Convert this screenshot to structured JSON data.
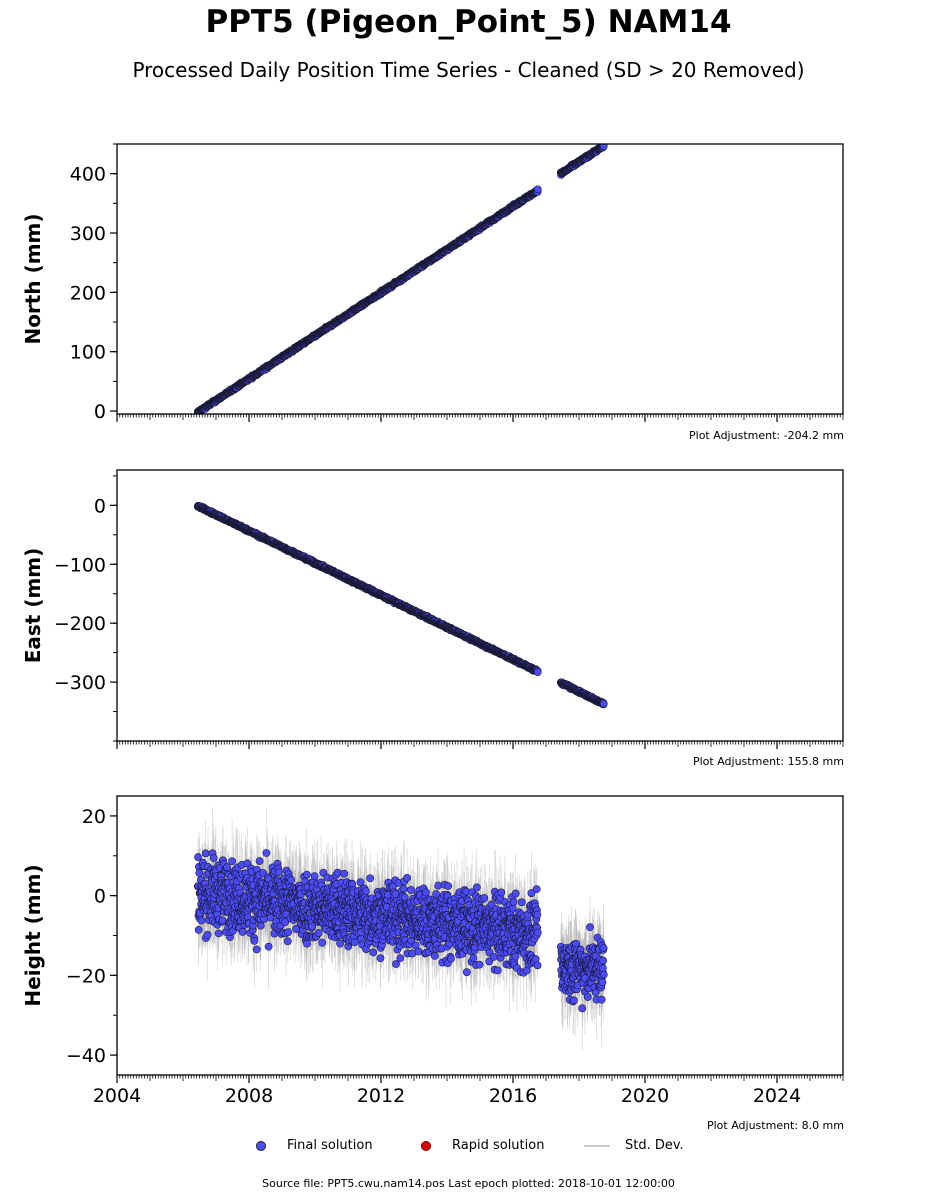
{
  "title": "PPT5 (Pigeon_Point_5) NAM14",
  "subtitle": "Processed Daily Position Time Series - Cleaned (SD > 20 Removed)",
  "footer": "Source file: PPT5.cwu.nam14.pos  Last epoch plotted: 2018-10-01 12:00:00",
  "legend": {
    "final": "Final solution",
    "rapid": "Rapid solution",
    "std": "Std. Dev.",
    "final_color": "#4b4bff",
    "rapid_color": "#e00000",
    "std_color": "#c8c8c8"
  },
  "chart_data": [
    {
      "type": "scatter",
      "ylabel": "North (mm)",
      "adjustment": "Plot Adjustment: -204.2 mm",
      "xlim": [
        2004,
        2026
      ],
      "ylim": [
        -5,
        450
      ],
      "yticks": [
        0,
        100,
        200,
        300,
        400
      ],
      "ytick_labels": [
        "0",
        "100",
        "200",
        "300",
        "400"
      ],
      "xticks": [
        2004,
        2008,
        2012,
        2016,
        2020,
        2024
      ],
      "xtick_labels": [],
      "segments": [
        {
          "x": [
            2006.45,
            2016.75
          ],
          "y": [
            -2,
            372
          ]
        },
        {
          "x": [
            2017.45,
            2018.75
          ],
          "y": [
            400,
            447
          ]
        }
      ]
    },
    {
      "type": "scatter",
      "ylabel": "East (mm)",
      "adjustment": "Plot Adjustment: 155.8 mm",
      "xlim": [
        2004,
        2026
      ],
      "ylim": [
        -400,
        60
      ],
      "yticks": [
        0,
        -100,
        -200,
        -300
      ],
      "ytick_labels": [
        "0",
        "−100",
        "−200",
        "−300"
      ],
      "xticks": [
        2004,
        2008,
        2012,
        2016,
        2020,
        2024
      ],
      "xtick_labels": [],
      "segments": [
        {
          "x": [
            2006.45,
            2016.75
          ],
          "y": [
            -1,
            -282
          ]
        },
        {
          "x": [
            2017.45,
            2018.75
          ],
          "y": [
            -301,
            -337
          ]
        }
      ]
    },
    {
      "type": "scatter",
      "ylabel": "Height (mm)",
      "adjustment": "Plot Adjustment: 8.0 mm",
      "xlim": [
        2004,
        2026
      ],
      "ylim": [
        -45,
        25
      ],
      "yticks": [
        20,
        0,
        -20,
        -40
      ],
      "ytick_labels": [
        "20",
        "0",
        "−20",
        "−40"
      ],
      "xticks": [
        2004,
        2008,
        2012,
        2016,
        2020,
        2024
      ],
      "xtick_labels": [
        "2004",
        "2008",
        "2012",
        "2016",
        "2020",
        "2024"
      ],
      "segments": [
        {
          "x": [
            2006.45,
            2016.75
          ],
          "y_mean": [
            1,
            -10
          ],
          "spread": 7
        },
        {
          "x": [
            2017.45,
            2018.75
          ],
          "y_mean": [
            -18,
            -18
          ],
          "spread": 6
        }
      ]
    }
  ]
}
